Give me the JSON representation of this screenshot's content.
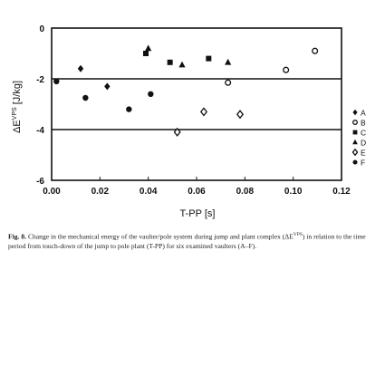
{
  "chart_data": {
    "type": "scatter",
    "xlabel": "T-PP [s]",
    "ylabel": "ΔE",
    "ylabel_sup": "VPS",
    "ylabel_unit": " [J/kg]",
    "xlim": [
      0,
      0.12
    ],
    "ylim": [
      -6,
      0
    ],
    "xticks": [
      "0.00",
      "0.02",
      "0.04",
      "0.06",
      "0.08",
      "0.10",
      "0.12"
    ],
    "yticks": [
      "0",
      "-2",
      "-4",
      "-6"
    ],
    "reference_lines_y": [
      -2,
      -4
    ],
    "legend_position": "right",
    "series": [
      {
        "name": "A",
        "marker": "diamond-filled",
        "points": [
          [
            0.012,
            -1.6
          ],
          [
            0.023,
            -2.3
          ]
        ]
      },
      {
        "name": "B",
        "marker": "circle-open",
        "points": [
          [
            0.109,
            -0.9
          ],
          [
            0.097,
            -1.65
          ],
          [
            0.073,
            -2.15
          ]
        ]
      },
      {
        "name": "C",
        "marker": "square-filled",
        "points": [
          [
            0.039,
            -1.0
          ],
          [
            0.049,
            -1.35
          ],
          [
            0.065,
            -1.2
          ]
        ]
      },
      {
        "name": "D",
        "marker": "triangle-filled",
        "points": [
          [
            0.04,
            -0.8
          ],
          [
            0.054,
            -1.45
          ],
          [
            0.073,
            -1.35
          ]
        ]
      },
      {
        "name": "E",
        "marker": "diamond-open",
        "points": [
          [
            0.063,
            -3.3
          ],
          [
            0.078,
            -3.4
          ],
          [
            0.052,
            -4.1
          ]
        ]
      },
      {
        "name": "F",
        "marker": "circle-filled",
        "points": [
          [
            0.002,
            -2.1
          ],
          [
            0.014,
            -2.75
          ],
          [
            0.032,
            -3.2
          ],
          [
            0.041,
            -2.6
          ]
        ]
      }
    ]
  },
  "caption": {
    "label": "Fig. 8.",
    "text": " Change in the mechanical energy of the vaulter/pole system during jump and plant complex (ΔE",
    "sup": "VPS",
    "text2": ") in relation to the time period from touch-down of the jump to pole plant (T-PP) for six examined vaulters (A–F)."
  }
}
